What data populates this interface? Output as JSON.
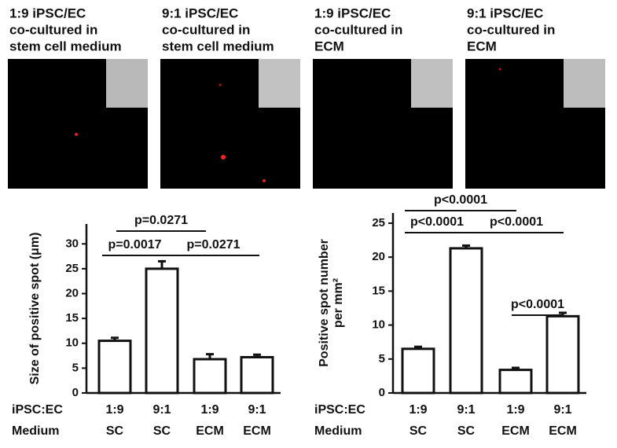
{
  "panels": [
    {
      "lines": [
        "1:9 iPSC/EC",
        "co-cultured in",
        "stem cell medium"
      ]
    },
    {
      "lines": [
        "9:1 iPSC/EC",
        "co-cultured in",
        "stem cell medium"
      ]
    },
    {
      "lines": [
        "1:9 iPSC/EC",
        "co-cultured in",
        "ECM"
      ]
    },
    {
      "lines": [
        "9:1 iPSC/EC",
        "co-cultured in",
        "ECM"
      ]
    }
  ],
  "chart_data": [
    {
      "type": "bar",
      "ylabel": [
        "Size of positive spot (μm)"
      ],
      "categories": [
        "1:9",
        "9:1",
        "1:9",
        "9:1"
      ],
      "groups": [
        "SC",
        "SC",
        "ECM",
        "ECM"
      ],
      "row_labels": [
        "iPSC:EC",
        "Medium"
      ],
      "values": [
        10.5,
        25,
        6.8,
        7.2
      ],
      "errors": [
        0.6,
        1.5,
        1.0,
        0.5
      ],
      "ylim": [
        0,
        34
      ],
      "yticks": [
        0,
        5,
        10,
        15,
        20,
        25,
        30
      ],
      "annotations": [
        "p=0.0271",
        "p=0.0017",
        "p=0.0271"
      ],
      "color": "#ffffff"
    },
    {
      "type": "bar",
      "ylabel": [
        "Positive spot number",
        "per mm²"
      ],
      "categories": [
        "1:9",
        "9:1",
        "1:9",
        "9:1"
      ],
      "groups": [
        "SC",
        "SC",
        "ECM",
        "ECM"
      ],
      "row_labels": [
        "iPSC:EC",
        "Medium"
      ],
      "values": [
        6.5,
        21.3,
        3.4,
        11.3
      ],
      "errors": [
        0.3,
        0.4,
        0.3,
        0.5
      ],
      "ylim": [
        0,
        26.5
      ],
      "yticks": [
        0,
        5,
        10,
        15,
        20,
        25
      ],
      "annotations": [
        "p<0.0001",
        "p<0.0001",
        "p<0.0001",
        "p<0.0001"
      ],
      "color": "#ffffff"
    }
  ]
}
